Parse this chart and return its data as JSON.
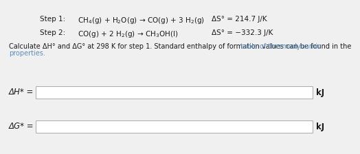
{
  "background_color": "#f0f0f0",
  "step1_label": "Step 1:",
  "step1_equation": "CH$_4$(g) + H$_2$O(g) → CO(g) + 3 H$_2$(g)",
  "step1_delta_s": "ΔS° = 214.7 J/K",
  "step2_label": "Step 2:",
  "step2_equation": "CO(g) + 2 H$_2$(g) → CH$_3$OH(l)",
  "step2_delta_s": "ΔS° = −332.3 J/K",
  "instruction_black": "Calculate ΔH° and ΔG° at 298 K for step 1. Standard enthalpy of formation values can be found in the ",
  "instruction_link_line1": "table of thermodynamic",
  "instruction_link_line2": "properties.",
  "label_dH": "ΔH* =",
  "label_dG": "ΔG* =",
  "unit": "kJ",
  "text_color": "#1a1a1a",
  "link_color": "#5b8ec4",
  "font_size_steps": 7.5,
  "font_size_instruction": 7.0,
  "font_size_labels": 8.5
}
